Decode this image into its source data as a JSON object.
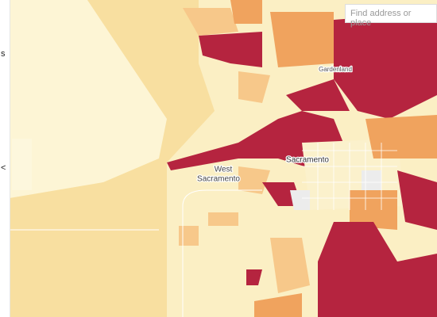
{
  "search": {
    "placeholder": "Find address or place"
  },
  "sidebar": {
    "letter": "s",
    "toggle": "<"
  },
  "labels": {
    "gardenland": "Gardenland",
    "west": [
      "West",
      "Sacramento"
    ],
    "sacramento": "Sacramento"
  }
}
